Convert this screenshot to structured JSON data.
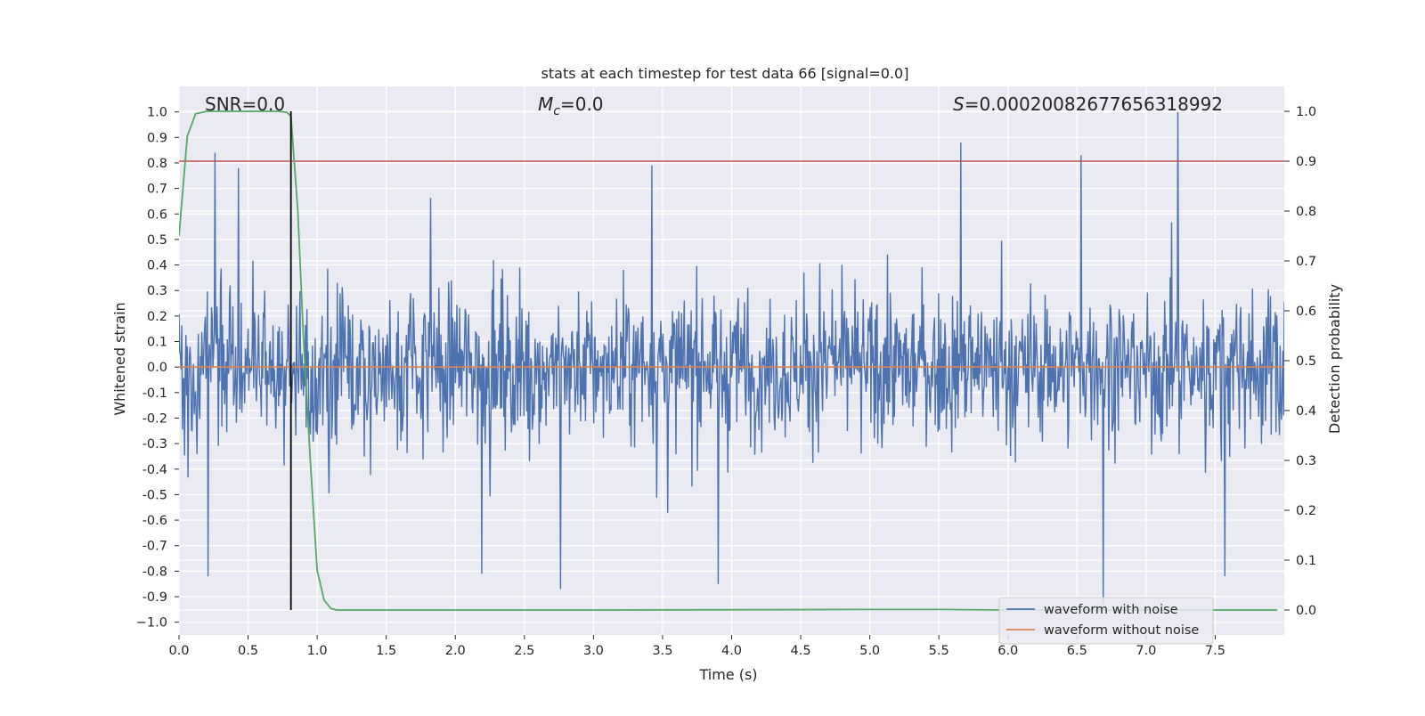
{
  "chart_data": {
    "type": "line",
    "title": "stats at each timestep for test data 66 [signal=0.0]",
    "xlabel": "Time (s)",
    "ylabel": "Whitened strain",
    "y2label": "Detection probability",
    "xlim": [
      0.0,
      8.0
    ],
    "ylim": [
      -1.05,
      1.1
    ],
    "y2lim": [
      -0.05,
      1.05
    ],
    "xticks": [
      0.0,
      0.5,
      1.0,
      1.5,
      2.0,
      2.5,
      3.0,
      3.5,
      4.0,
      4.5,
      5.0,
      5.5,
      6.0,
      6.5,
      7.0,
      7.5
    ],
    "xtick_labels": [
      "0.0",
      "0.5",
      "1.0",
      "1.5",
      "2.0",
      "2.5",
      "3.0",
      "3.5",
      "4.0",
      "4.5",
      "5.0",
      "5.5",
      "6.0",
      "6.5",
      "7.0",
      "7.5"
    ],
    "yticks": [
      1.0,
      0.9,
      0.8,
      0.7,
      0.6,
      0.5,
      0.4,
      0.3,
      0.2,
      0.1,
      0.0,
      -0.1,
      -0.2,
      -0.3,
      -0.4,
      -0.5,
      -0.6,
      -0.7,
      -0.8,
      -0.9,
      -1.0
    ],
    "ytick_labels": [
      "1.0",
      "0.9",
      "0.8",
      "0.7",
      "0.6",
      "0.5",
      "0.4",
      "0.3",
      "0.2",
      "0.1",
      "0.0",
      "-0.1",
      "-0.2",
      "-0.3",
      "-0.4",
      "-0.5",
      "-0.6",
      "-0.7",
      "-0.8",
      "-0.9",
      "−1.0"
    ],
    "y2ticks": [
      1.0,
      0.9,
      0.8,
      0.7,
      0.6,
      0.5,
      0.4,
      0.3,
      0.2,
      0.1,
      0.0
    ],
    "y2tick_labels": [
      "1.0",
      "0.9",
      "0.8",
      "0.7",
      "0.6",
      "0.5",
      "0.4",
      "0.3",
      "0.2",
      "0.1",
      "0.0"
    ],
    "grid": true,
    "annotations": {
      "snr": "SNR=0.0",
      "mc_symbol": "M",
      "mc_sub": "c",
      "mc_value": "=0.0",
      "s_symbol": "S",
      "s_value": "=0.00020082677656318992"
    },
    "threshold_line": {
      "y2": 0.9,
      "color": "#c44e52"
    },
    "peak_marker_x": 0.81,
    "series": [
      {
        "name": "waveform with noise",
        "color": "#4c72b0",
        "n_samples": 1600,
        "typical_amplitude": 0.22,
        "peaks": [
          {
            "x": 0.26,
            "y": 0.84
          },
          {
            "x": 0.43,
            "y": 0.78
          },
          {
            "x": 0.21,
            "y": -0.82
          },
          {
            "x": 2.76,
            "y": -0.87
          },
          {
            "x": 3.9,
            "y": -0.85
          },
          {
            "x": 3.42,
            "y": 0.79
          },
          {
            "x": 5.66,
            "y": 0.88
          },
          {
            "x": 6.53,
            "y": 0.83
          },
          {
            "x": 7.23,
            "y": 1.0
          },
          {
            "x": 6.69,
            "y": -0.93
          },
          {
            "x": 7.57,
            "y": -0.82
          },
          {
            "x": 2.19,
            "y": -0.81
          }
        ]
      },
      {
        "name": "waveform without noise",
        "color": "#dd8452",
        "values_constant": 0.0
      },
      {
        "name": "detection probability",
        "color": "#55a868",
        "axis": "right",
        "x": [
          0.0,
          0.06,
          0.12,
          0.2,
          0.4,
          0.6,
          0.72,
          0.78,
          0.81,
          0.86,
          0.9,
          0.95,
          1.0,
          1.05,
          1.1,
          1.14,
          1.5,
          3.0,
          5.0,
          5.5,
          6.0,
          7.0,
          7.95
        ],
        "y": [
          0.75,
          0.95,
          0.995,
          1.0,
          1.0,
          1.0,
          1.0,
          0.998,
          0.99,
          0.8,
          0.55,
          0.3,
          0.08,
          0.02,
          0.003,
          0.0,
          0.0,
          0.0,
          0.001,
          0.001,
          0.0,
          0.0,
          0.0
        ]
      }
    ],
    "legend": {
      "position": "lower-right",
      "entries": [
        {
          "label": "waveform with noise",
          "color": "#4c72b0"
        },
        {
          "label": "waveform without noise",
          "color": "#dd8452"
        }
      ]
    },
    "colors": {
      "plot_bg": "#eaeaf2",
      "grid": "#ffffff",
      "text": "#262626",
      "marker": "#000000"
    }
  }
}
